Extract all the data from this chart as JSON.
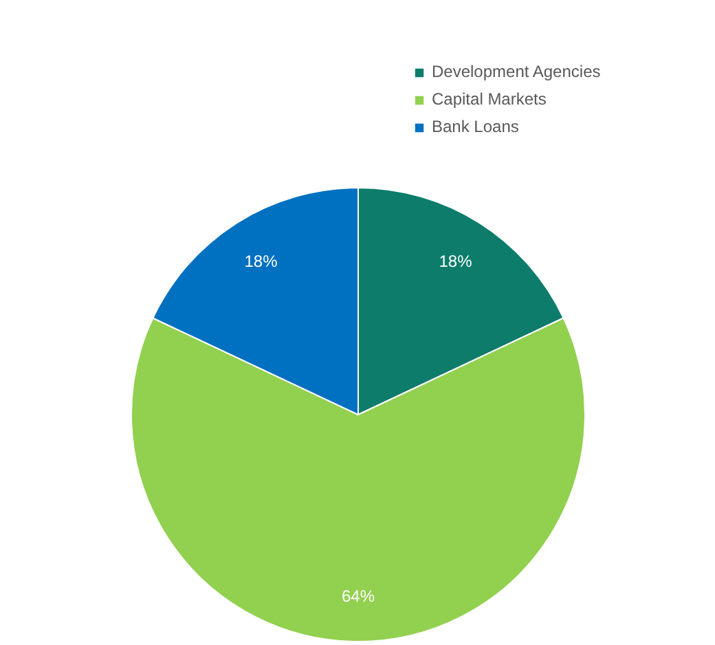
{
  "chart_data": {
    "type": "pie",
    "categories": [
      "Development Agencies",
      "Capital Markets",
      "Bank Loans"
    ],
    "values": [
      18,
      64,
      18
    ],
    "colors": [
      "#0e7c6b",
      "#92d050",
      "#0070c0"
    ],
    "value_labels": [
      "18%",
      "64%",
      "18%"
    ],
    "legend": "top right"
  }
}
